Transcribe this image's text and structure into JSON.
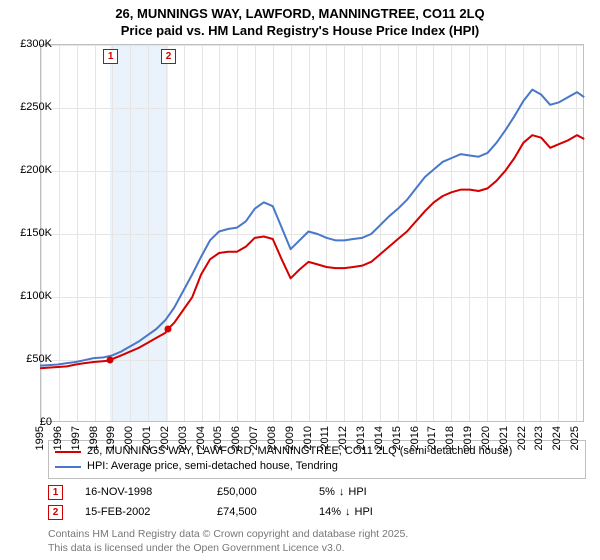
{
  "title_line1": "26, MUNNINGS WAY, LAWFORD, MANNINGTREE, CO11 2LQ",
  "title_line2": "Price paid vs. HM Land Registry's House Price Index (HPI)",
  "chart": {
    "type": "line",
    "background_color": "#ffffff",
    "grid_color": "#e5e5e5",
    "border_color": "#c0c0c0",
    "x_start_year": 1995,
    "x_end_year": 2025.5,
    "ylim": [
      0,
      300000
    ],
    "ytick_step": 50000,
    "ytick_labels": [
      "£0",
      "£50K",
      "£100K",
      "£150K",
      "£200K",
      "£250K",
      "£300K"
    ],
    "xtick_years": [
      1995,
      1996,
      1997,
      1998,
      1999,
      2000,
      2001,
      2002,
      2003,
      2004,
      2005,
      2006,
      2007,
      2008,
      2009,
      2010,
      2011,
      2012,
      2013,
      2014,
      2015,
      2016,
      2017,
      2018,
      2019,
      2020,
      2021,
      2022,
      2023,
      2024,
      2025
    ],
    "highlight_band": {
      "start": 1998.88,
      "end": 2002.12,
      "color": "#eaf2fb"
    },
    "series": [
      {
        "name": "26, MUNNINGS WAY, LAWFORD, MANNINGTREE, CO11 2LQ (semi-detached house)",
        "color": "#d40000",
        "width": 2,
        "points": [
          [
            1995,
            44000
          ],
          [
            1995.5,
            44500
          ],
          [
            1996,
            45000
          ],
          [
            1996.5,
            45500
          ],
          [
            1997,
            47000
          ],
          [
            1997.5,
            48000
          ],
          [
            1998,
            49000
          ],
          [
            1998.5,
            49500
          ],
          [
            1998.88,
            50000
          ],
          [
            1999,
            51000
          ],
          [
            1999.5,
            54000
          ],
          [
            2000,
            57000
          ],
          [
            2000.5,
            60000
          ],
          [
            2001,
            64000
          ],
          [
            2001.5,
            68000
          ],
          [
            2002,
            72000
          ],
          [
            2002.12,
            74500
          ],
          [
            2002.5,
            80000
          ],
          [
            2003,
            90000
          ],
          [
            2003.5,
            100000
          ],
          [
            2004,
            118000
          ],
          [
            2004.5,
            130000
          ],
          [
            2005,
            135000
          ],
          [
            2005.5,
            136000
          ],
          [
            2006,
            136000
          ],
          [
            2006.5,
            140000
          ],
          [
            2007,
            147000
          ],
          [
            2007.5,
            148000
          ],
          [
            2008,
            146000
          ],
          [
            2008.5,
            130000
          ],
          [
            2009,
            115000
          ],
          [
            2009.5,
            122000
          ],
          [
            2010,
            128000
          ],
          [
            2010.5,
            126000
          ],
          [
            2011,
            124000
          ],
          [
            2011.5,
            123000
          ],
          [
            2012,
            123000
          ],
          [
            2012.5,
            124000
          ],
          [
            2013,
            125000
          ],
          [
            2013.5,
            128000
          ],
          [
            2014,
            134000
          ],
          [
            2014.5,
            140000
          ],
          [
            2015,
            146000
          ],
          [
            2015.5,
            152000
          ],
          [
            2016,
            160000
          ],
          [
            2016.5,
            168000
          ],
          [
            2017,
            175000
          ],
          [
            2017.5,
            180000
          ],
          [
            2018,
            183000
          ],
          [
            2018.5,
            185000
          ],
          [
            2019,
            185000
          ],
          [
            2019.5,
            184000
          ],
          [
            2020,
            186000
          ],
          [
            2020.5,
            192000
          ],
          [
            2021,
            200000
          ],
          [
            2021.5,
            210000
          ],
          [
            2022,
            222000
          ],
          [
            2022.5,
            228000
          ],
          [
            2023,
            226000
          ],
          [
            2023.5,
            218000
          ],
          [
            2024,
            221000
          ],
          [
            2024.5,
            224000
          ],
          [
            2025,
            228000
          ],
          [
            2025.4,
            225000
          ]
        ]
      },
      {
        "name": "HPI: Average price, semi-detached house, Tendring",
        "color": "#4a78c8",
        "width": 2,
        "points": [
          [
            1995,
            46000
          ],
          [
            1995.5,
            46500
          ],
          [
            1996,
            47000
          ],
          [
            1996.5,
            48000
          ],
          [
            1997,
            49000
          ],
          [
            1997.5,
            50500
          ],
          [
            1998,
            52000
          ],
          [
            1998.5,
            52500
          ],
          [
            1999,
            54000
          ],
          [
            1999.5,
            57000
          ],
          [
            2000,
            61000
          ],
          [
            2000.5,
            65000
          ],
          [
            2001,
            70000
          ],
          [
            2001.5,
            75000
          ],
          [
            2002,
            82000
          ],
          [
            2002.5,
            92000
          ],
          [
            2003,
            105000
          ],
          [
            2003.5,
            118000
          ],
          [
            2004,
            132000
          ],
          [
            2004.5,
            145000
          ],
          [
            2005,
            152000
          ],
          [
            2005.5,
            154000
          ],
          [
            2006,
            155000
          ],
          [
            2006.5,
            160000
          ],
          [
            2007,
            170000
          ],
          [
            2007.5,
            175000
          ],
          [
            2008,
            172000
          ],
          [
            2008.5,
            155000
          ],
          [
            2009,
            138000
          ],
          [
            2009.5,
            145000
          ],
          [
            2010,
            152000
          ],
          [
            2010.5,
            150000
          ],
          [
            2011,
            147000
          ],
          [
            2011.5,
            145000
          ],
          [
            2012,
            145000
          ],
          [
            2012.5,
            146000
          ],
          [
            2013,
            147000
          ],
          [
            2013.5,
            150000
          ],
          [
            2014,
            157000
          ],
          [
            2014.5,
            164000
          ],
          [
            2015,
            170000
          ],
          [
            2015.5,
            177000
          ],
          [
            2016,
            186000
          ],
          [
            2016.5,
            195000
          ],
          [
            2017,
            201000
          ],
          [
            2017.5,
            207000
          ],
          [
            2018,
            210000
          ],
          [
            2018.5,
            213000
          ],
          [
            2019,
            212000
          ],
          [
            2019.5,
            211000
          ],
          [
            2020,
            214000
          ],
          [
            2020.5,
            222000
          ],
          [
            2021,
            232000
          ],
          [
            2021.5,
            243000
          ],
          [
            2022,
            255000
          ],
          [
            2022.5,
            264000
          ],
          [
            2023,
            260000
          ],
          [
            2023.5,
            252000
          ],
          [
            2024,
            254000
          ],
          [
            2024.5,
            258000
          ],
          [
            2025,
            262000
          ],
          [
            2025.4,
            258000
          ]
        ]
      }
    ],
    "transactions": [
      {
        "label": "1",
        "color": "#d40000",
        "year": 1998.88,
        "price": 50000,
        "date": "16-NOV-1998",
        "price_fmt": "£50,000",
        "delta_pct": "5%",
        "delta_dir": "↓",
        "delta_vs": "HPI"
      },
      {
        "label": "2",
        "color": "#d40000",
        "year": 2002.12,
        "price": 74500,
        "date": "15-FEB-2002",
        "price_fmt": "£74,500",
        "delta_pct": "14%",
        "delta_dir": "↓",
        "delta_vs": "HPI"
      }
    ]
  },
  "attribution_line1": "Contains HM Land Registry data © Crown copyright and database right 2025.",
  "attribution_line2": "This data is licensed under the Open Government Licence v3.0."
}
